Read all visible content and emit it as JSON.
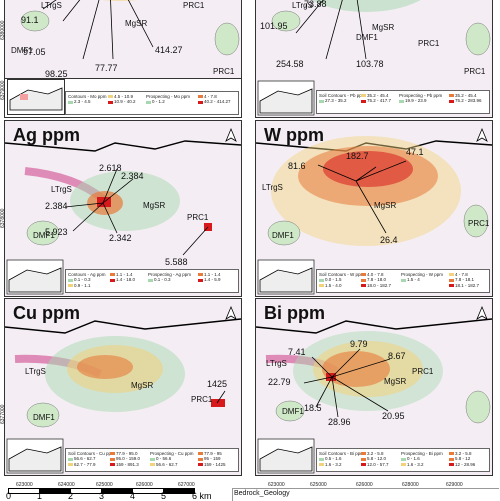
{
  "panels": [
    {
      "id": "mo",
      "title": "",
      "values": [
        "91.1",
        "97.05",
        "98.25",
        "77.77",
        "414.27"
      ],
      "rock_labels": [
        "LTrgS",
        "MgSR",
        "DMF1",
        "PRC1",
        "PRC1"
      ],
      "legend": {
        "soil_title": "Contours - Mo ppm",
        "soil": [
          "4.5 - 10.9",
          "2.3 - 4.5",
          "10.9 - 40.2",
          "40.2 - 321.3"
        ],
        "prosp_title": "Prospecting - Mo ppm",
        "prosp": [
          "0 - 1.2",
          "1.2 - 1.6",
          "1.6 - 4",
          "4 - 7.8",
          "7.8 - 18.1",
          "40.2 - 414.27"
        ]
      }
    },
    {
      "id": "pb",
      "title": "",
      "values": [
        "73.88",
        "101.95",
        "254.58",
        "103.78"
      ],
      "rock_labels": [
        "LTrgS",
        "MgSR",
        "DMF1",
        "PRC1",
        "PRC1"
      ],
      "legend": {
        "soil_title": "Soil Contours - Pb ppm",
        "soil": [
          "20 - 23.9",
          "27.3 - 35.2",
          "35.2 - 45.4",
          "45.4 - 75.2",
          "75.2 - 417.7"
        ],
        "prosp_title": "Prospecting - Pb ppm",
        "prosp": [
          "12.3 - 19.9",
          "19.9 - 23.9",
          "23.9 - 27.3",
          "35.2 - 45.4",
          "45.4 - 75.2",
          "75.2 - 283.96"
        ]
      }
    },
    {
      "id": "ag",
      "title": "Ag ppm",
      "values": [
        "2.618",
        "2.384",
        "2.384",
        "5.923",
        "2.342",
        "5.588"
      ],
      "rock_labels": [
        "LTrgS",
        "MgSR",
        "DMF1",
        "PRC1"
      ],
      "legend": {
        "soil_title": "Contours - Ag ppm",
        "soil": [
          "0.1 - 0.3",
          "0.3 - 0.5",
          "0.5 - 0.9",
          "0.9 - 1.1",
          "1.1 - 1.4",
          "1.4 - 18.0"
        ],
        "prosp_title": "Prospecting - Ag ppm",
        "prosp": [
          "0.1 - 0.3",
          "0.3 - 0.5",
          "0.5 - 0.9",
          "1.1 - 1.4",
          "1.4 - 5.9"
        ]
      }
    },
    {
      "id": "w",
      "title": "W ppm",
      "values": [
        "81.6",
        "182.7",
        "47.1",
        "26.4"
      ],
      "rock_labels": [
        "LTrgS",
        "MgSR",
        "DMF1",
        "PRC1"
      ],
      "legend": {
        "soil_title": "Soil Contours - W ppm",
        "soil": [
          "0.0 - 1.5",
          "1.5 - 4.0",
          "4.0 - 7.8",
          "7.8 - 18.0",
          "18.0 - 182.7"
        ],
        "prosp_title": "Prospecting - W ppm",
        "prosp": [
          "1.5 - 4",
          "4 - 7.8",
          "7.8 - 18.1",
          "18.1 - 182.7"
        ]
      }
    },
    {
      "id": "cu",
      "title": "Cu ppm",
      "values": [
        "1425"
      ],
      "rock_labels": [
        "LTrgS",
        "MgSR",
        "DMF1",
        "PRC1"
      ],
      "legend": {
        "soil_title": "Soil Contours - Cu ppm",
        "soil": [
          "56.6 - 62.7",
          "62.7 - 77.9",
          "77.9 - 95.0",
          "95.0 - 159.0",
          "159 - 891.3"
        ],
        "prosp_title": "Prospecting - Cu ppm",
        "prosp": [
          "0 - 56.6",
          "56.6 - 62.7",
          "62.7 - 77.9",
          "77.9 - 95",
          "95 - 159",
          "159 - 1425"
        ]
      }
    },
    {
      "id": "bi",
      "title": "Bi ppm",
      "values": [
        "7.41",
        "9.79",
        "8.67",
        "22.79",
        "18.5",
        "28.96",
        "20.95"
      ],
      "rock_labels": [
        "LTrgS",
        "MgSR",
        "DMF1",
        "PRC1"
      ],
      "legend": {
        "soil_title": "Soil Contours - Bi ppm",
        "soil": [
          "0.5 - 1.6",
          "1.6 - 3.2",
          "3.2 - 5.8",
          "5.8 - 12.0",
          "12.0 - 57.7"
        ],
        "prosp_title": "Prospecting - Bi ppm",
        "prosp": [
          "0 - 1.6",
          "1.6 - 3.2",
          "3.2 - 5.8",
          "5.8 - 12",
          "12 - 28.96"
        ]
      }
    }
  ],
  "axes": {
    "x_ticks": [
      "623000",
      "624000",
      "625000",
      "626000",
      "627000",
      "628000",
      "629000"
    ],
    "y_ticks": [
      "6380000",
      "6379000",
      "6378000",
      "6377000"
    ]
  },
  "scale": {
    "numbers": [
      "0",
      "1",
      "2",
      "3",
      "4",
      "5",
      "6 km"
    ]
  },
  "bedrock_label": "Bedrock_Geology",
  "colors": {
    "background": "#f4eef4",
    "low": "#a8d8b0",
    "mid": "#f2d27a",
    "high": "#e87a3a",
    "peak": "#d7191c",
    "dyke": "#d873a8",
    "unit": "#cfe8c8"
  }
}
